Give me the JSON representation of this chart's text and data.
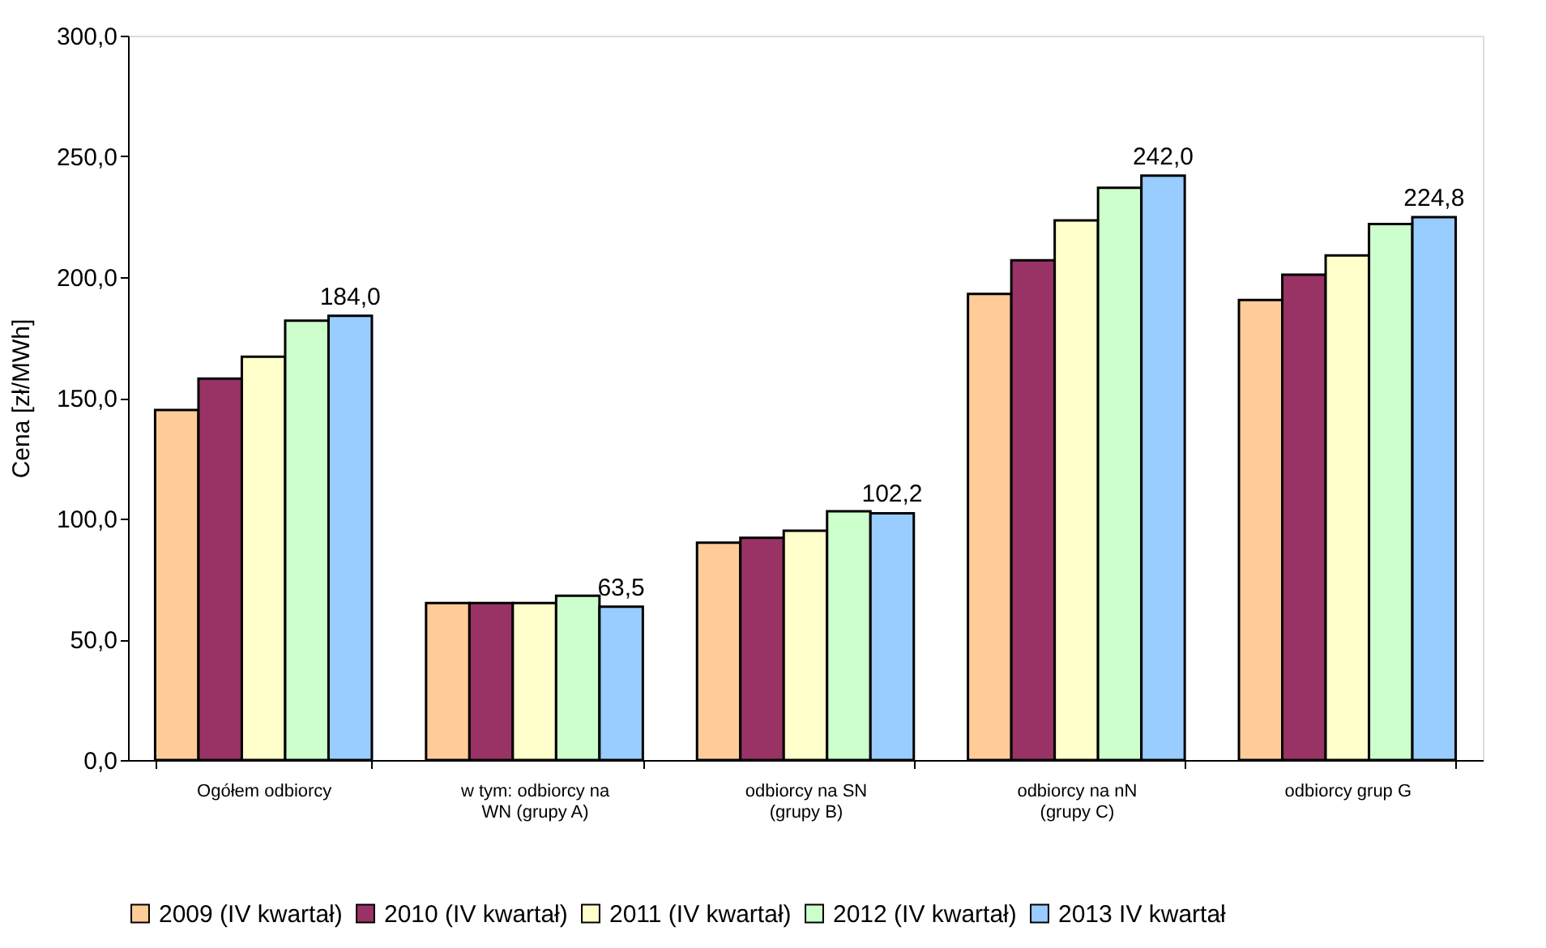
{
  "chart_data": {
    "type": "bar",
    "ylabel": "Cena [zł/MWh]",
    "categories": [
      "Ogółem odbiorcy",
      "w tym: odbiorcy na\nWN (grupy A)",
      "odbiorcy na SN\n(grupy B)",
      "odbiorcy na nN\n(grupy C)",
      "odbiorcy grup G"
    ],
    "series": [
      {
        "name": "2009 (IV kwartał)",
        "color": "#ffcc99",
        "values": [
          145,
          65,
          90,
          193,
          190.5
        ]
      },
      {
        "name": "2010 (IV kwartał)",
        "color": "#993366",
        "values": [
          158,
          65,
          92,
          207,
          201
        ]
      },
      {
        "name": "2011 (IV kwartał)",
        "color": "#ffffcc",
        "values": [
          167,
          65,
          95,
          223.5,
          209
        ]
      },
      {
        "name": "2012 (IV kwartał)",
        "color": "#ccffcc",
        "values": [
          182,
          68,
          103,
          237,
          222
        ]
      },
      {
        "name": "2013 IV kwartał",
        "color": "#99ccff",
        "values": [
          184.0,
          63.5,
          102.2,
          242.0,
          224.8
        ],
        "value_labels": [
          "184,0",
          "63,5",
          "102,2",
          "242,0",
          "224,8"
        ]
      }
    ],
    "ylim": [
      0,
      300
    ],
    "yticks": [
      {
        "value": 0,
        "label": "0,0"
      },
      {
        "value": 50,
        "label": "50,0"
      },
      {
        "value": 100,
        "label": "100,0"
      },
      {
        "value": 150,
        "label": "150,0"
      },
      {
        "value": 200,
        "label": "200,0"
      },
      {
        "value": 250,
        "label": "250,0"
      },
      {
        "value": 300,
        "label": "300,0"
      }
    ],
    "grid": false,
    "legend": "bottom"
  }
}
